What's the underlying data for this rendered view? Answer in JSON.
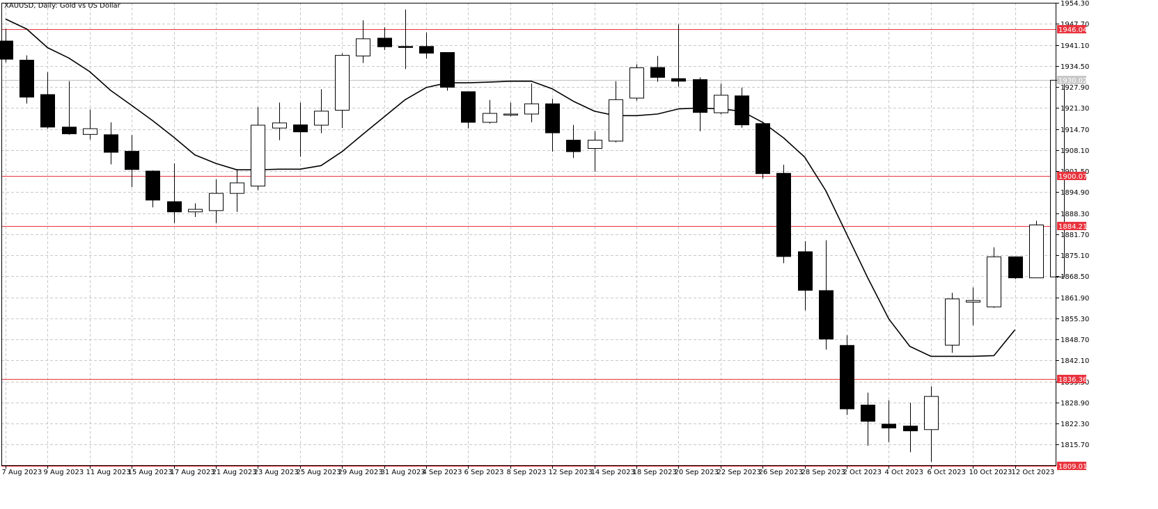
{
  "header": {
    "title": "XAUUSD, Daily:  Gold vs US Dollar"
  },
  "colors": {
    "background": "#ffffff",
    "grid": "#c8c8c8",
    "candle": "#000000",
    "bull_fill": "#ffffff",
    "bear_fill": "#000000",
    "ma_line": "#000000",
    "level_line": "#e8333d",
    "level_label_bg": "#e8333d",
    "level_label_text": "#ffffff",
    "current_line": "#c0c0c0",
    "current_label_bg": "#c8c8c8",
    "current_label_text": "#ffffff"
  },
  "chart_data": {
    "type": "candlestick",
    "symbol": "XAUUSD",
    "timeframe": "Daily",
    "ylim": [
      1809.01,
      1954.3
    ],
    "grid": true,
    "y_ticks": [
      "1954.30",
      "1947.70",
      "1941.10",
      "1934.50",
      "1927.90",
      "1921.30",
      "1914.70",
      "1908.10",
      "1901.50",
      "1894.90",
      "1888.30",
      "1881.70",
      "1875.10",
      "1868.50",
      "1861.90",
      "1855.30",
      "1848.70",
      "1842.10",
      "1835.50",
      "1828.90",
      "1822.30",
      "1815.70"
    ],
    "x_ticks": [
      "7 Aug 2023",
      "9 Aug 2023",
      "11 Aug 2023",
      "15 Aug 2023",
      "17 Aug 2023",
      "21 Aug 2023",
      "23 Aug 2023",
      "25 Aug 2023",
      "29 Aug 2023",
      "31 Aug 2023",
      "4 Sep 2023",
      "6 Sep 2023",
      "8 Sep 2023",
      "12 Sep 2023",
      "14 Sep 2023",
      "18 Sep 2023",
      "20 Sep 2023",
      "22 Sep 2023",
      "26 Sep 2023",
      "28 Sep 2023",
      "2 Oct 2023",
      "4 Oct 2023",
      "6 Oct 2023",
      "10 Oct 2023",
      "12 Oct 2023"
    ],
    "levels": [
      {
        "value": 1946.04,
        "label": "1946.04"
      },
      {
        "value": 1900.07,
        "label": "1900.07"
      },
      {
        "value": 1884.21,
        "label": "1884.21"
      },
      {
        "value": 1836.36,
        "label": "1836.36"
      },
      {
        "value": 1809.01,
        "label": "1809.01"
      }
    ],
    "current_price": {
      "value": 1930.02,
      "label": "1930.02"
    },
    "candles": [
      {
        "o": 1942.3,
        "h": 1946.1,
        "l": 1935.6,
        "c": 1936.6
      },
      {
        "o": 1936.3,
        "h": 1937.8,
        "l": 1922.7,
        "c": 1924.7
      },
      {
        "o": 1925.5,
        "h": 1932.5,
        "l": 1914.8,
        "c": 1915.3
      },
      {
        "o": 1915.3,
        "h": 1929.7,
        "l": 1912.9,
        "c": 1913.2
      },
      {
        "o": 1913.0,
        "h": 1920.8,
        "l": 1911.4,
        "c": 1914.8
      },
      {
        "o": 1912.9,
        "h": 1916.8,
        "l": 1903.6,
        "c": 1907.4
      },
      {
        "o": 1907.7,
        "h": 1912.8,
        "l": 1896.5,
        "c": 1902.0
      },
      {
        "o": 1901.5,
        "h": 1901.7,
        "l": 1890.1,
        "c": 1892.4
      },
      {
        "o": 1891.9,
        "h": 1903.9,
        "l": 1885.2,
        "c": 1888.7
      },
      {
        "o": 1888.7,
        "h": 1891.4,
        "l": 1887.1,
        "c": 1889.5
      },
      {
        "o": 1889.1,
        "h": 1898.9,
        "l": 1885.2,
        "c": 1894.5
      },
      {
        "o": 1894.5,
        "h": 1902.1,
        "l": 1888.7,
        "c": 1897.8
      },
      {
        "o": 1896.8,
        "h": 1921.6,
        "l": 1895.5,
        "c": 1915.9
      },
      {
        "o": 1915.0,
        "h": 1923.0,
        "l": 1911.2,
        "c": 1916.6
      },
      {
        "o": 1916.0,
        "h": 1923.0,
        "l": 1906.0,
        "c": 1913.8
      },
      {
        "o": 1915.9,
        "h": 1927.2,
        "l": 1913.4,
        "c": 1920.3
      },
      {
        "o": 1920.6,
        "h": 1938.4,
        "l": 1915.0,
        "c": 1937.8
      },
      {
        "o": 1937.6,
        "h": 1948.8,
        "l": 1935.4,
        "c": 1943.0
      },
      {
        "o": 1943.2,
        "h": 1946.6,
        "l": 1939.5,
        "c": 1940.5
      },
      {
        "o": 1940.6,
        "h": 1952.2,
        "l": 1933.5,
        "c": 1940.5
      },
      {
        "o": 1940.6,
        "h": 1945.0,
        "l": 1936.8,
        "c": 1938.5
      },
      {
        "o": 1938.7,
        "h": 1938.7,
        "l": 1926.7,
        "c": 1927.8
      },
      {
        "o": 1926.4,
        "h": 1926.4,
        "l": 1914.9,
        "c": 1916.8
      },
      {
        "o": 1916.8,
        "h": 1923.8,
        "l": 1916.4,
        "c": 1919.6
      },
      {
        "o": 1919.3,
        "h": 1923.0,
        "l": 1918.7,
        "c": 1919.4
      },
      {
        "o": 1919.4,
        "h": 1929.0,
        "l": 1916.8,
        "c": 1922.6
      },
      {
        "o": 1922.6,
        "h": 1924.2,
        "l": 1907.6,
        "c": 1913.5
      },
      {
        "o": 1911.2,
        "h": 1916.0,
        "l": 1905.6,
        "c": 1907.6
      },
      {
        "o": 1908.6,
        "h": 1914.0,
        "l": 1901.3,
        "c": 1911.2
      },
      {
        "o": 1910.9,
        "h": 1929.7,
        "l": 1910.5,
        "c": 1923.9
      },
      {
        "o": 1924.4,
        "h": 1935.0,
        "l": 1923.6,
        "c": 1933.9
      },
      {
        "o": 1934.0,
        "h": 1937.6,
        "l": 1929.5,
        "c": 1930.9
      },
      {
        "o": 1930.5,
        "h": 1947.5,
        "l": 1928.0,
        "c": 1929.7
      },
      {
        "o": 1930.2,
        "h": 1930.9,
        "l": 1914.0,
        "c": 1919.9
      },
      {
        "o": 1919.8,
        "h": 1928.9,
        "l": 1919.3,
        "c": 1925.3
      },
      {
        "o": 1925.1,
        "h": 1927.7,
        "l": 1915.1,
        "c": 1916.0
      },
      {
        "o": 1916.4,
        "h": 1916.6,
        "l": 1899.1,
        "c": 1900.7
      },
      {
        "o": 1900.8,
        "h": 1903.5,
        "l": 1872.6,
        "c": 1874.7
      },
      {
        "o": 1876.2,
        "h": 1879.5,
        "l": 1857.8,
        "c": 1864.1
      },
      {
        "o": 1864.0,
        "h": 1879.8,
        "l": 1845.5,
        "c": 1848.8
      },
      {
        "o": 1846.8,
        "h": 1850.0,
        "l": 1825.0,
        "c": 1826.9
      },
      {
        "o": 1828.1,
        "h": 1832.0,
        "l": 1815.3,
        "c": 1823.0
      },
      {
        "o": 1822.1,
        "h": 1829.6,
        "l": 1816.5,
        "c": 1820.9
      },
      {
        "o": 1821.5,
        "h": 1828.8,
        "l": 1813.3,
        "c": 1820.0
      },
      {
        "o": 1820.4,
        "h": 1834.0,
        "l": 1810.3,
        "c": 1830.8
      },
      {
        "o": 1846.9,
        "h": 1863.3,
        "l": 1844.5,
        "c": 1861.4
      },
      {
        "o": 1860.4,
        "h": 1865.0,
        "l": 1853.1,
        "c": 1860.9
      },
      {
        "o": 1858.9,
        "h": 1877.6,
        "l": 1858.6,
        "c": 1874.6
      },
      {
        "o": 1874.6,
        "h": 1874.6,
        "l": 1867.6,
        "c": 1868.0
      },
      {
        "o": 1868.0,
        "h": 1885.9,
        "l": 1868.0,
        "c": 1884.6
      },
      {
        "o": 1868.3,
        "h": 1930.5,
        "l": 1868.0,
        "c": 1930.0
      }
    ],
    "moving_average": [
      {
        "i": 0,
        "v": 1949.2
      },
      {
        "i": 1,
        "v": 1946.1
      },
      {
        "i": 2,
        "v": 1940.2
      },
      {
        "i": 3,
        "v": 1937.0
      },
      {
        "i": 4,
        "v": 1932.7
      },
      {
        "i": 5,
        "v": 1926.8
      },
      {
        "i": 6,
        "v": 1922.1
      },
      {
        "i": 7,
        "v": 1917.3
      },
      {
        "i": 8,
        "v": 1912.1
      },
      {
        "i": 9,
        "v": 1906.6
      },
      {
        "i": 10,
        "v": 1903.9
      },
      {
        "i": 11,
        "v": 1901.9
      },
      {
        "i": 12,
        "v": 1901.9
      },
      {
        "i": 13,
        "v": 1902.1
      },
      {
        "i": 14,
        "v": 1902.1
      },
      {
        "i": 15,
        "v": 1903.2
      },
      {
        "i": 16,
        "v": 1907.6
      },
      {
        "i": 17,
        "v": 1913.1
      },
      {
        "i": 18,
        "v": 1918.5
      },
      {
        "i": 19,
        "v": 1923.9
      },
      {
        "i": 20,
        "v": 1927.7
      },
      {
        "i": 21,
        "v": 1929.2
      },
      {
        "i": 22,
        "v": 1929.2
      },
      {
        "i": 23,
        "v": 1929.4
      },
      {
        "i": 24,
        "v": 1929.7
      },
      {
        "i": 25,
        "v": 1929.7
      },
      {
        "i": 26,
        "v": 1927.3
      },
      {
        "i": 27,
        "v": 1923.4
      },
      {
        "i": 28,
        "v": 1920.3
      },
      {
        "i": 29,
        "v": 1918.9
      },
      {
        "i": 30,
        "v": 1918.9
      },
      {
        "i": 31,
        "v": 1919.4
      },
      {
        "i": 32,
        "v": 1921.0
      },
      {
        "i": 33,
        "v": 1921.3
      },
      {
        "i": 34,
        "v": 1921.0
      },
      {
        "i": 35,
        "v": 1920.3
      },
      {
        "i": 36,
        "v": 1916.8
      },
      {
        "i": 37,
        "v": 1911.9
      },
      {
        "i": 38,
        "v": 1905.9
      },
      {
        "i": 39,
        "v": 1895.4
      },
      {
        "i": 40,
        "v": 1881.7
      },
      {
        "i": 41,
        "v": 1868.0
      },
      {
        "i": 42,
        "v": 1855.1
      },
      {
        "i": 43,
        "v": 1846.5
      },
      {
        "i": 44,
        "v": 1843.4
      },
      {
        "i": 45,
        "v": 1843.4
      },
      {
        "i": 46,
        "v": 1843.4
      },
      {
        "i": 47,
        "v": 1843.6
      },
      {
        "i": 48,
        "v": 1851.7
      }
    ]
  }
}
